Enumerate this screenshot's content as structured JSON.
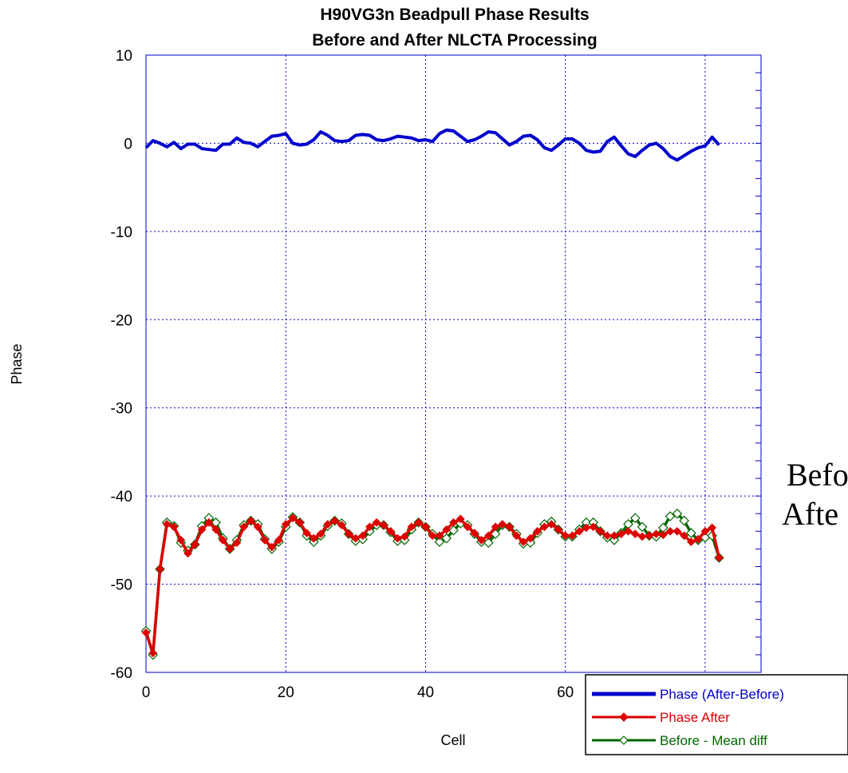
{
  "chart_data": {
    "type": "line",
    "title": "H90VG3n Beadpull Phase Results",
    "subtitle": "Before and After NLCTA Processing",
    "xlabel": "Cell",
    "ylabel": "Phase",
    "xlim": [
      0,
      88
    ],
    "ylim": [
      -60,
      10
    ],
    "x_ticks": [
      "0",
      "20",
      "40",
      "60"
    ],
    "y_ticks": [
      "10",
      "0",
      "-10",
      "-20",
      "-30",
      "-40",
      "-50",
      "-60"
    ],
    "grid": true,
    "legend_position": "bottom-right",
    "x": [
      0,
      1,
      2,
      3,
      4,
      5,
      6,
      7,
      8,
      9,
      10,
      11,
      12,
      13,
      14,
      15,
      16,
      17,
      18,
      19,
      20,
      21,
      22,
      23,
      24,
      25,
      26,
      27,
      28,
      29,
      30,
      31,
      32,
      33,
      34,
      35,
      36,
      37,
      38,
      39,
      40,
      41,
      42,
      43,
      44,
      45,
      46,
      47,
      48,
      49,
      50,
      51,
      52,
      53,
      54,
      55,
      56,
      57,
      58,
      59,
      60,
      61,
      62,
      63,
      64,
      65,
      66,
      67,
      68,
      69,
      70,
      71,
      72,
      73,
      74,
      75,
      76,
      77,
      78,
      79,
      80,
      81,
      82
    ],
    "series": [
      {
        "name": "Phase (After-Before)",
        "color": "#0000cc",
        "marker": "none",
        "values": [
          -0.5,
          0.3,
          0,
          -0.4,
          0.1,
          -0.6,
          -0.1,
          -0.1,
          -0.6,
          -0.7,
          -0.8,
          -0.1,
          -0.1,
          0.6,
          0.1,
          0,
          -0.4,
          0.2,
          0.8,
          0.9,
          1.1,
          0,
          -0.2,
          -0.1,
          0.4,
          1.3,
          0.9,
          0.3,
          0.2,
          0.3,
          0.9,
          1.0,
          0.9,
          0.4,
          0.3,
          0.5,
          0.8,
          0.7,
          0.6,
          0.3,
          0.4,
          0.2,
          1.1,
          1.5,
          1.4,
          0.8,
          0.2,
          0.4,
          0.8,
          1.3,
          1.2,
          0.5,
          -0.2,
          0.2,
          0.8,
          0.9,
          0.4,
          -0.5,
          -0.8,
          -0.2,
          0.5,
          0.5,
          0,
          -0.8,
          -1.0,
          -0.9,
          0.2,
          0.7,
          -0.3,
          -1.2,
          -1.5,
          -0.8,
          -0.2,
          0,
          -0.6,
          -1.5,
          -1.9,
          -1.4,
          -0.9,
          -0.5,
          -0.3,
          0.7,
          -0.2
        ]
      },
      {
        "name": "Phase After",
        "color": "#dd0000",
        "marker": "diamond-filled",
        "values": [
          -55.5,
          -57.8,
          -48.3,
          -43.2,
          -43.5,
          -45.0,
          -46.5,
          -45.5,
          -43.8,
          -43.0,
          -43.8,
          -45.0,
          -46.0,
          -45.3,
          -43.5,
          -42.8,
          -43.5,
          -45.0,
          -45.8,
          -45.0,
          -43.2,
          -42.5,
          -43.0,
          -44.2,
          -44.8,
          -44.3,
          -43.2,
          -42.8,
          -43.3,
          -44.3,
          -44.8,
          -44.5,
          -43.5,
          -43.0,
          -43.3,
          -44.0,
          -44.8,
          -44.6,
          -43.5,
          -43.0,
          -43.5,
          -44.5,
          -44.5,
          -43.8,
          -43.0,
          -42.6,
          -43.5,
          -44.2,
          -45.0,
          -44.5,
          -43.5,
          -43.2,
          -43.5,
          -44.5,
          -45.2,
          -44.8,
          -44.0,
          -43.5,
          -43.2,
          -43.8,
          -44.5,
          -44.5,
          -44.0,
          -43.6,
          -43.5,
          -44.0,
          -44.5,
          -44.5,
          -44.3,
          -44.0,
          -44.3,
          -44.6,
          -44.5,
          -44.3,
          -44.4,
          -44.0,
          -44.0,
          -44.5,
          -45.2,
          -44.9,
          -44.0,
          -43.6,
          -47.0
        ]
      },
      {
        "name": "Before - Mean diff",
        "color": "#006600",
        "marker": "diamond-open",
        "values": [
          -55.3,
          -58.0,
          -48.3,
          -43.0,
          -43.4,
          -45.3,
          -46.2,
          -45.5,
          -43.4,
          -42.5,
          -43.0,
          -44.8,
          -46.0,
          -45.0,
          -43.3,
          -42.8,
          -43.2,
          -44.9,
          -46.0,
          -45.2,
          -43.5,
          -42.4,
          -43.0,
          -44.5,
          -45.2,
          -44.5,
          -43.4,
          -42.8,
          -43.1,
          -44.3,
          -45.1,
          -44.9,
          -44.0,
          -43.3,
          -43.3,
          -44.1,
          -45.1,
          -45.0,
          -43.8,
          -43.0,
          -43.5,
          -44.3,
          -45.2,
          -44.8,
          -43.9,
          -43.1,
          -43.3,
          -44.3,
          -45.2,
          -45.3,
          -44.3,
          -43.3,
          -43.5,
          -44.3,
          -45.4,
          -45.3,
          -44.2,
          -43.2,
          -42.9,
          -43.8,
          -44.6,
          -44.6,
          -43.8,
          -43.0,
          -43.0,
          -44.0,
          -44.7,
          -45.0,
          -44.2,
          -43.2,
          -42.5,
          -43.5,
          -44.5,
          -44.6,
          -43.6,
          -42.3,
          -42.0,
          -42.8,
          -44.2,
          -45.0,
          -44.7,
          -44.5,
          -47.0
        ]
      }
    ]
  },
  "side_annotation": {
    "line1": "Befo",
    "line2": "Afte"
  }
}
